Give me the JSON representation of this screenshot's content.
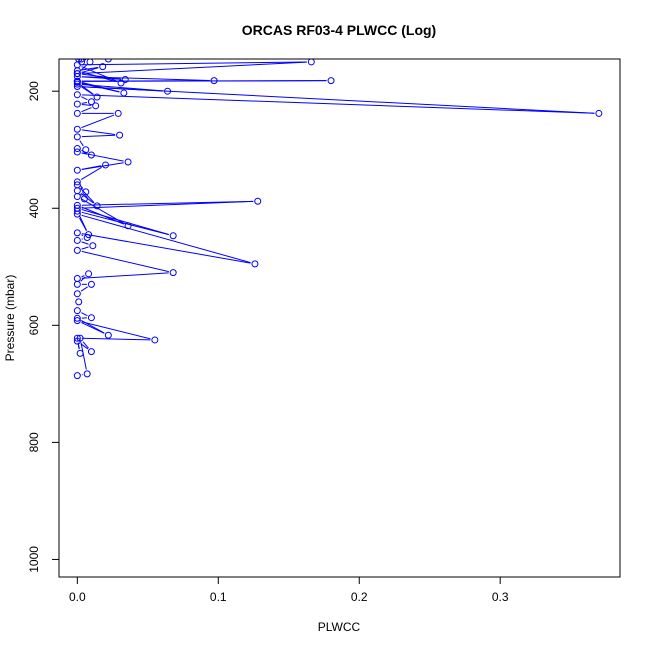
{
  "chart_data": {
    "type": "line",
    "title": "ORCAS RF03-4 PLWCC (Log)",
    "xlabel": "PLWCC",
    "ylabel": "Pressure (mbar)",
    "xlim": [
      -0.013,
      0.385
    ],
    "ylim": [
      1030,
      145
    ],
    "y_reversed": true,
    "x_ticks": [
      0,
      0.1,
      0.2,
      0.3
    ],
    "x_tick_labels": [
      "0.0",
      "0.1",
      "0.2",
      "0.3"
    ],
    "y_ticks": [
      200,
      400,
      600,
      800,
      1000
    ],
    "y_tick_labels": [
      "200",
      "400",
      "600",
      "800",
      "1000"
    ],
    "grid": false,
    "legend": "none",
    "colors": {
      "series": "#0000ff",
      "axis": "#000000",
      "background": "#ffffff"
    },
    "series": [
      {
        "x": [
          0.0,
          0.007,
          0.002,
          0.01,
          0.0,
          0.002,
          0.0,
          0.055,
          0.0,
          0.022,
          0.0,
          0.01,
          0.0,
          0.001,
          0.0,
          0.01,
          0.0,
          0.008,
          0.0,
          0.068,
          0.0,
          0.011,
          0.0,
          0.007,
          0.0,
          0.126,
          0.0,
          0.008,
          0.0,
          0.068,
          0.0,
          0.128,
          0.0,
          0.036,
          0.0,
          0.005,
          0.0,
          0.014,
          0.0,
          0.006,
          0.0,
          0.02,
          0.0,
          0.036,
          0.0,
          0.01,
          0.0,
          0.006,
          0.0,
          0.03,
          0.0,
          0.029,
          0.0,
          0.013,
          0.0,
          0.01,
          0.0,
          0.37,
          0.0,
          0.064,
          0.0,
          0.014,
          0.0,
          0.033,
          0.0,
          0.18,
          0.0,
          0.097,
          0.0,
          0.034,
          0.0,
          0.166,
          0.0,
          0.031,
          0.0,
          0.018,
          0.0,
          0.009,
          0.0,
          0.003,
          0.0,
          0.022,
          0.0,
          0.001,
          0.0,
          0.003,
          0.0
        ],
        "y": [
          686,
          683,
          622,
          645,
          627,
          648,
          622,
          625,
          592,
          617,
          588,
          587,
          575,
          560,
          546,
          530,
          530,
          512,
          520,
          510,
          472,
          464,
          455,
          450,
          442,
          495,
          410,
          445,
          405,
          447,
          400,
          388,
          395,
          430,
          380,
          384,
          370,
          396,
          360,
          372,
          355,
          326,
          335,
          321,
          304,
          309,
          298,
          300,
          278,
          275,
          265,
          238,
          238,
          225,
          222,
          218,
          206,
          238,
          192,
          200,
          188,
          210,
          185,
          203,
          183,
          182,
          183,
          182,
          175,
          180,
          170,
          150,
          155,
          186,
          165,
          158,
          170,
          150,
          140,
          150,
          140,
          145,
          140,
          145,
          140,
          145,
          140
        ]
      }
    ]
  }
}
